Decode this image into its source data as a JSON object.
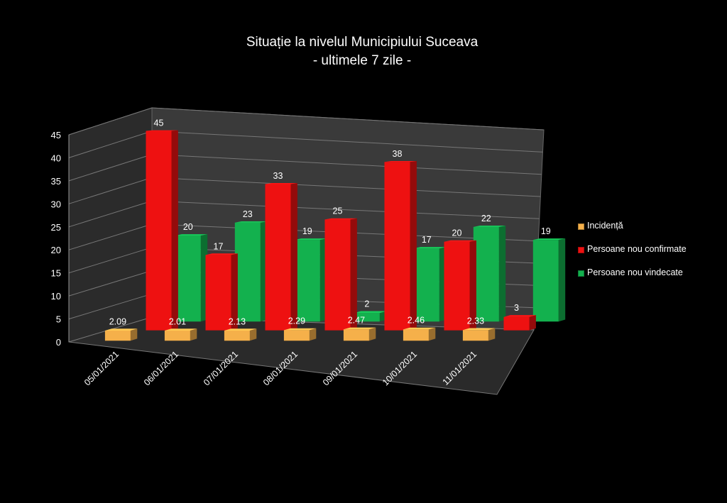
{
  "chart_data": {
    "type": "bar",
    "title": [
      "Situație la nivelul Municipiului Suceava",
      "- ultimele 7 zile -"
    ],
    "categories": [
      "05/01/2021",
      "06/01/2021",
      "07/01/2021",
      "08/01/2021",
      "09/01/2021",
      "10/01/2021",
      "11/01/2021"
    ],
    "series": [
      {
        "name": "Incidență",
        "color": "#f5b04a",
        "values": [
          2.09,
          2.01,
          2.13,
          2.29,
          2.47,
          2.46,
          2.33
        ]
      },
      {
        "name": "Persoane nou confirmate",
        "color": "#ee1111",
        "values": [
          45,
          17,
          33,
          25,
          38,
          20,
          3
        ]
      },
      {
        "name": "Persoane nou vindecate",
        "color": "#13b14e",
        "values": [
          20,
          23,
          19,
          2,
          17,
          22,
          19
        ]
      }
    ],
    "yticks": [
      0,
      5,
      10,
      15,
      20,
      25,
      30,
      35,
      40,
      45
    ],
    "ylim": [
      0,
      45
    ],
    "grid": true,
    "legend_position": "right",
    "three_d": true
  }
}
